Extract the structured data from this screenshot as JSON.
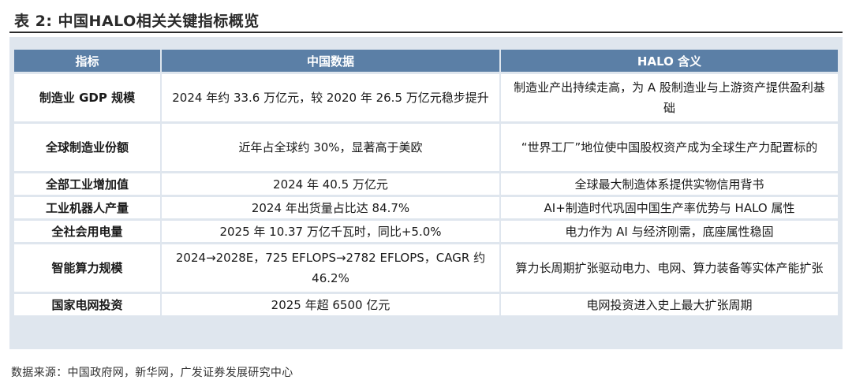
{
  "title": "表 2:  中国HALO相关关键指标概览",
  "table": {
    "headers": [
      "指标",
      "中国数据",
      "HALO 含义"
    ],
    "rows": [
      [
        "制造业 GDP 规模",
        "2024 年约 33.6 万亿元，较 2020 年 26.5 万亿元稳步提升",
        "制造业产出持续走高，为 A 股制造业与上游资产提供盈利基础"
      ],
      [
        "全球制造业份额",
        "近年占全球约 30%，显著高于美欧",
        "“世界工厂”地位使中国股权资产成为全球生产力配置标的"
      ],
      [
        "全部工业增加值",
        "2024 年 40.5 万亿元",
        "全球最大制造体系提供实物信用背书"
      ],
      [
        "工业机器人产量",
        "2024 年出货量占比达 84.7%",
        "AI+制造时代巩固中国生产率优势与 HALO 属性"
      ],
      [
        "全社会用电量",
        "2025 年 10.37 万亿千瓦时，同比+5.0%",
        "电力作为 AI 与经济刚需，底座属性稳固"
      ],
      [
        "智能算力规模",
        "2024→2028E，725 EFLOPS→2782 EFLOPS，CAGR 约 46.2%",
        "算力长周期扩张驱动电力、电网、算力装备等实体产能扩张"
      ],
      [
        "国家电网投资",
        "2025 年超 6500 亿元",
        "电网投资进入史上最大扩张周期"
      ]
    ]
  },
  "source": "数据来源：中国政府网，新华网，广发证券发展研究中心",
  "colors": {
    "header_bg": "#5b7fa6",
    "panel_bg": "#dfe6ee"
  }
}
